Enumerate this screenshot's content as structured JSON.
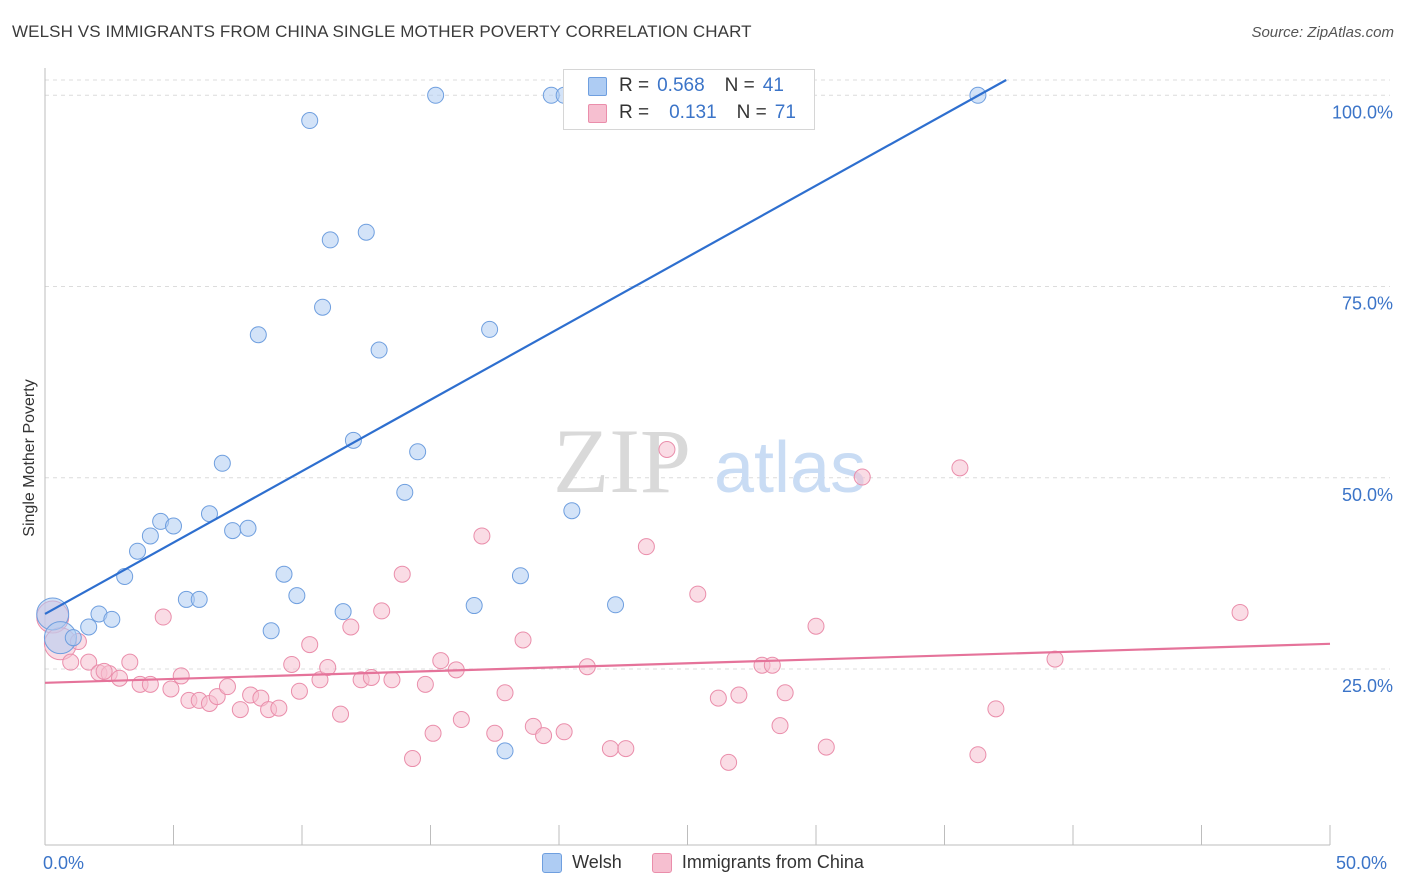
{
  "header": {
    "title": "WELSH VS IMMIGRANTS FROM CHINA SINGLE MOTHER POVERTY CORRELATION CHART",
    "source": "Source: ZipAtlas.com"
  },
  "legend": {
    "welsh": {
      "r_label": "R =",
      "r_value": "0.568",
      "n_label": "N =",
      "n_value": "41"
    },
    "china": {
      "r_label": "R =",
      "r_value": "0.131",
      "n_label": "N =",
      "n_value": "71"
    }
  },
  "watermark": {
    "zip": "ZIP",
    "atlas": "atlas"
  },
  "colors": {
    "welsh_fill": "#aeccf3",
    "welsh_stroke": "#6f9fdf",
    "welsh_line": "#2e6fcf",
    "china_fill": "#f6bfd0",
    "china_stroke": "#ea8eab",
    "china_line": "#e5739a",
    "tick_text": "#3b74c8",
    "grid": "#dcdcdc"
  },
  "chart_data": {
    "type": "scatter",
    "title": "WELSH VS IMMIGRANTS FROM CHINA SINGLE MOTHER POVERTY CORRELATION CHART",
    "xlabel": "",
    "ylabel": "Single Mother Poverty",
    "xlim": [
      0,
      50
    ],
    "ylim": [
      2,
      102
    ],
    "x_tick_labels": [
      "0.0%",
      "50.0%"
    ],
    "y_ticks": [
      25,
      50,
      75,
      100
    ],
    "y_tick_labels": [
      "25.0%",
      "50.0%",
      "75.0%",
      "100.0%"
    ],
    "grid": true,
    "legend_position": "top-center",
    "series": [
      {
        "name": "Welsh",
        "r": 0.568,
        "n": 41,
        "trend": {
          "x": [
            0,
            37.4
          ],
          "y": [
            32.2,
            102
          ]
        },
        "points": [
          {
            "x": 0.3,
            "y": 32.2,
            "big": true
          },
          {
            "x": 0.6,
            "y": 29.1,
            "big": true
          },
          {
            "x": 1.1,
            "y": 29.1
          },
          {
            "x": 1.7,
            "y": 30.5
          },
          {
            "x": 2.1,
            "y": 32.2
          },
          {
            "x": 2.6,
            "y": 31.5
          },
          {
            "x": 3.1,
            "y": 37.1
          },
          {
            "x": 3.6,
            "y": 40.4
          },
          {
            "x": 4.1,
            "y": 42.4
          },
          {
            "x": 4.5,
            "y": 44.3
          },
          {
            "x": 5.0,
            "y": 43.7
          },
          {
            "x": 5.5,
            "y": 34.1
          },
          {
            "x": 6.0,
            "y": 34.1
          },
          {
            "x": 6.4,
            "y": 45.3
          },
          {
            "x": 6.9,
            "y": 51.9
          },
          {
            "x": 7.3,
            "y": 43.1
          },
          {
            "x": 7.9,
            "y": 43.4
          },
          {
            "x": 8.3,
            "y": 68.7
          },
          {
            "x": 8.8,
            "y": 30.0
          },
          {
            "x": 9.3,
            "y": 37.4
          },
          {
            "x": 9.8,
            "y": 34.6
          },
          {
            "x": 10.3,
            "y": 96.7
          },
          {
            "x": 10.8,
            "y": 72.3
          },
          {
            "x": 11.1,
            "y": 81.1
          },
          {
            "x": 11.6,
            "y": 32.5
          },
          {
            "x": 12.0,
            "y": 54.9
          },
          {
            "x": 12.5,
            "y": 82.1
          },
          {
            "x": 13.0,
            "y": 66.7
          },
          {
            "x": 14.0,
            "y": 48.1
          },
          {
            "x": 14.5,
            "y": 53.4
          },
          {
            "x": 15.2,
            "y": 100.0
          },
          {
            "x": 16.7,
            "y": 33.3
          },
          {
            "x": 17.3,
            "y": 69.4
          },
          {
            "x": 17.9,
            "y": 14.3
          },
          {
            "x": 18.5,
            "y": 37.2
          },
          {
            "x": 19.7,
            "y": 100.0
          },
          {
            "x": 20.2,
            "y": 100.0
          },
          {
            "x": 20.5,
            "y": 45.7
          },
          {
            "x": 22.2,
            "y": 33.4
          },
          {
            "x": 24.3,
            "y": 100.0
          },
          {
            "x": 36.3,
            "y": 100.0
          }
        ]
      },
      {
        "name": "Immigrants from China",
        "r": 0.131,
        "n": 71,
        "trend": {
          "x": [
            0,
            50
          ],
          "y": [
            23.2,
            28.3
          ]
        },
        "points": [
          {
            "x": 0.3,
            "y": 31.8,
            "big": true
          },
          {
            "x": 0.6,
            "y": 28.3,
            "big": true
          },
          {
            "x": 1.0,
            "y": 25.9
          },
          {
            "x": 1.3,
            "y": 28.6
          },
          {
            "x": 1.7,
            "y": 25.9
          },
          {
            "x": 2.1,
            "y": 24.5
          },
          {
            "x": 2.5,
            "y": 24.4
          },
          {
            "x": 2.9,
            "y": 23.8
          },
          {
            "x": 3.3,
            "y": 25.9
          },
          {
            "x": 3.7,
            "y": 23.0
          },
          {
            "x": 4.1,
            "y": 23.0
          },
          {
            "x": 4.6,
            "y": 31.8
          },
          {
            "x": 4.9,
            "y": 22.4
          },
          {
            "x": 5.3,
            "y": 24.1
          },
          {
            "x": 5.6,
            "y": 20.9
          },
          {
            "x": 6.0,
            "y": 20.9
          },
          {
            "x": 6.4,
            "y": 20.5
          },
          {
            "x": 6.7,
            "y": 21.4
          },
          {
            "x": 7.1,
            "y": 22.7
          },
          {
            "x": 7.6,
            "y": 19.7
          },
          {
            "x": 8.0,
            "y": 21.6
          },
          {
            "x": 8.4,
            "y": 21.2
          },
          {
            "x": 8.7,
            "y": 19.7
          },
          {
            "x": 9.1,
            "y": 19.9
          },
          {
            "x": 9.6,
            "y": 25.6
          },
          {
            "x": 9.9,
            "y": 22.1
          },
          {
            "x": 10.3,
            "y": 28.2
          },
          {
            "x": 10.7,
            "y": 23.6
          },
          {
            "x": 11.0,
            "y": 25.2
          },
          {
            "x": 11.5,
            "y": 19.1
          },
          {
            "x": 11.9,
            "y": 30.5
          },
          {
            "x": 12.3,
            "y": 23.6
          },
          {
            "x": 12.7,
            "y": 23.9
          },
          {
            "x": 13.1,
            "y": 32.6
          },
          {
            "x": 13.5,
            "y": 23.6
          },
          {
            "x": 13.9,
            "y": 37.4
          },
          {
            "x": 14.3,
            "y": 13.3
          },
          {
            "x": 14.8,
            "y": 23.0
          },
          {
            "x": 15.1,
            "y": 16.6
          },
          {
            "x": 15.4,
            "y": 26.1
          },
          {
            "x": 16.0,
            "y": 24.9
          },
          {
            "x": 16.2,
            "y": 18.4
          },
          {
            "x": 17.0,
            "y": 42.4
          },
          {
            "x": 17.5,
            "y": 16.6
          },
          {
            "x": 17.9,
            "y": 21.9
          },
          {
            "x": 18.6,
            "y": 28.8
          },
          {
            "x": 19.0,
            "y": 17.5
          },
          {
            "x": 19.4,
            "y": 16.3
          },
          {
            "x": 20.2,
            "y": 16.8
          },
          {
            "x": 21.1,
            "y": 25.3
          },
          {
            "x": 22.0,
            "y": 14.6
          },
          {
            "x": 22.6,
            "y": 14.6
          },
          {
            "x": 23.4,
            "y": 41.0
          },
          {
            "x": 24.2,
            "y": 53.7
          },
          {
            "x": 25.4,
            "y": 34.8
          },
          {
            "x": 26.2,
            "y": 21.2
          },
          {
            "x": 26.6,
            "y": 12.8
          },
          {
            "x": 27.0,
            "y": 21.6
          },
          {
            "x": 27.9,
            "y": 25.5
          },
          {
            "x": 28.3,
            "y": 25.5
          },
          {
            "x": 28.6,
            "y": 17.6
          },
          {
            "x": 28.8,
            "y": 21.9
          },
          {
            "x": 30.0,
            "y": 30.6
          },
          {
            "x": 30.4,
            "y": 14.8
          },
          {
            "x": 31.8,
            "y": 50.1
          },
          {
            "x": 35.6,
            "y": 51.3
          },
          {
            "x": 36.3,
            "y": 13.8
          },
          {
            "x": 37.0,
            "y": 19.8
          },
          {
            "x": 39.3,
            "y": 26.3
          },
          {
            "x": 46.5,
            "y": 32.4
          },
          {
            "x": 2.3,
            "y": 24.7
          }
        ]
      }
    ]
  },
  "bottom_legend": {
    "welsh": "Welsh",
    "china": "Immigrants from China"
  }
}
